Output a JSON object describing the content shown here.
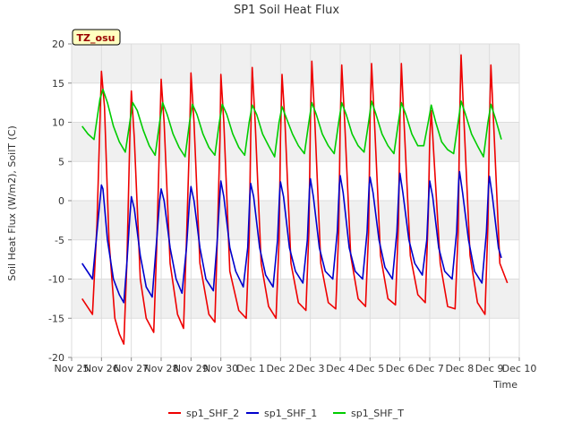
{
  "chart_data": {
    "type": "line",
    "title": "SP1 Soil Heat Flux",
    "xlabel": "Time",
    "ylabel": "Soil Heat Flux (W/m2), SoilT (C)",
    "badge": "TZ_osu",
    "xlim": [
      0,
      15
    ],
    "ylim": [
      -20,
      20
    ],
    "grid": true,
    "legend_position": "bottom-center",
    "x_tick_values": [
      0,
      1,
      2,
      3,
      4,
      5,
      6,
      7,
      8,
      9,
      10,
      11,
      12,
      13,
      14,
      15
    ],
    "x_tick_labels": [
      "Nov 25",
      "Nov 26",
      "Nov 27",
      "Nov 28",
      "Nov 29",
      "Nov 30",
      "Dec 1",
      "Dec 2",
      "Dec 3",
      "Dec 4",
      "Dec 5",
      "Dec 6",
      "Dec 7",
      "Dec 8",
      "Dec 9",
      "Dec 10"
    ],
    "y_tick_values": [
      -20,
      -15,
      -10,
      -5,
      0,
      5,
      10,
      15,
      20
    ],
    "y_tick_labels": [
      "-20",
      "-15",
      "-10",
      "-5",
      "0",
      "5",
      "10",
      "15",
      "20"
    ],
    "series": [
      {
        "name": "sp1_SHF_2",
        "color": "#ee0000",
        "x": [
          0.35,
          0.7,
          0.85,
          1.0,
          1.1,
          1.25,
          1.45,
          1.6,
          1.75,
          1.85,
          1.95,
          2.0,
          2.1,
          2.3,
          2.5,
          2.75,
          2.85,
          2.95,
          3.0,
          3.1,
          3.3,
          3.55,
          3.75,
          3.85,
          3.95,
          4.0,
          4.1,
          4.3,
          4.6,
          4.8,
          4.88,
          4.97,
          5.0,
          5.1,
          5.3,
          5.6,
          5.85,
          5.95,
          6.0,
          6.05,
          6.15,
          6.35,
          6.6,
          6.85,
          6.95,
          7.0,
          7.05,
          7.15,
          7.35,
          7.6,
          7.85,
          7.95,
          8.0,
          8.05,
          8.15,
          8.35,
          8.6,
          8.85,
          8.95,
          9.0,
          9.05,
          9.15,
          9.35,
          9.6,
          9.85,
          9.95,
          10.0,
          10.05,
          10.15,
          10.35,
          10.6,
          10.85,
          10.95,
          11.0,
          11.05,
          11.15,
          11.35,
          11.6,
          11.85,
          11.95,
          12.0,
          12.05,
          12.15,
          12.35,
          12.6,
          12.85,
          12.95,
          13.0,
          13.05,
          13.15,
          13.35,
          13.6,
          13.85,
          13.95,
          14.0,
          14.05,
          14.15,
          14.35,
          14.6
        ],
        "y": [
          -12.5,
          -14.5,
          -3.0,
          16.5,
          12.0,
          -5.0,
          -15.0,
          -17.0,
          -18.3,
          -8.0,
          8.0,
          14.0,
          8.0,
          -10.0,
          -15.0,
          -16.8,
          -6.0,
          8.0,
          15.5,
          10.0,
          -8.0,
          -14.5,
          -16.3,
          -5.0,
          8.0,
          16.3,
          10.0,
          -8.0,
          -14.5,
          -15.5,
          -5.0,
          8.0,
          16.1,
          10.0,
          -9.0,
          -14.0,
          -15.0,
          -5.0,
          8.0,
          17.0,
          10.0,
          -8.0,
          -13.5,
          -15.0,
          -5.0,
          8.0,
          16.1,
          10.0,
          -8.0,
          -13.0,
          -14.0,
          -4.0,
          10.0,
          17.8,
          10.0,
          -8.0,
          -13.0,
          -13.8,
          -4.0,
          10.0,
          17.3,
          10.0,
          -7.0,
          -12.5,
          -13.5,
          -4.0,
          10.0,
          17.5,
          10.0,
          -7.0,
          -12.5,
          -13.3,
          -3.0,
          10.0,
          17.5,
          9.0,
          -7.0,
          -12.0,
          -13.0,
          -2.0,
          8.0,
          11.5,
          5.0,
          -8.0,
          -13.5,
          -13.8,
          -4.0,
          10.0,
          18.6,
          10.0,
          -7.0,
          -13.0,
          -14.5,
          -3.0,
          10.0,
          17.3,
          9.0,
          -8.0,
          -10.5
        ]
      },
      {
        "name": "sp1_SHF_1",
        "color": "#0000cc",
        "x": [
          0.35,
          0.7,
          0.85,
          1.0,
          1.05,
          1.2,
          1.4,
          1.6,
          1.75,
          1.85,
          1.95,
          2.0,
          2.1,
          2.3,
          2.5,
          2.7,
          2.85,
          2.95,
          3.0,
          3.1,
          3.3,
          3.5,
          3.7,
          3.85,
          3.95,
          4.0,
          4.1,
          4.3,
          4.5,
          4.75,
          4.88,
          4.97,
          5.0,
          5.1,
          5.3,
          5.5,
          5.75,
          5.9,
          5.97,
          6.0,
          6.1,
          6.3,
          6.5,
          6.75,
          6.9,
          6.97,
          7.0,
          7.1,
          7.3,
          7.5,
          7.75,
          7.9,
          7.97,
          8.0,
          8.1,
          8.3,
          8.5,
          8.75,
          8.9,
          8.97,
          9.0,
          9.1,
          9.3,
          9.5,
          9.75,
          9.9,
          9.97,
          10.0,
          10.1,
          10.3,
          10.5,
          10.75,
          10.9,
          10.97,
          11.0,
          11.1,
          11.3,
          11.5,
          11.75,
          11.9,
          11.97,
          12.0,
          12.1,
          12.3,
          12.5,
          12.75,
          12.9,
          12.97,
          13.0,
          13.1,
          13.3,
          13.5,
          13.75,
          13.9,
          13.97,
          14.0,
          14.1,
          14.3,
          14.4
        ],
        "y": [
          -8.0,
          -10.0,
          -4.0,
          2.0,
          1.5,
          -5.0,
          -10.0,
          -12.0,
          -13.0,
          -8.0,
          -2.0,
          0.5,
          -1.0,
          -7.0,
          -11.0,
          -12.3,
          -5.0,
          0.0,
          1.5,
          0.0,
          -6.0,
          -10.0,
          -11.8,
          -6.0,
          0.0,
          1.8,
          0.0,
          -6.0,
          -10.0,
          -11.5,
          -5.0,
          1.0,
          2.5,
          0.5,
          -6.0,
          -9.0,
          -11.0,
          -6.0,
          0.5,
          2.2,
          0.5,
          -6.0,
          -9.5,
          -11.0,
          -5.0,
          1.0,
          2.4,
          0.5,
          -6.0,
          -9.0,
          -10.5,
          -5.0,
          1.5,
          2.8,
          0.5,
          -6.0,
          -9.0,
          -10.0,
          -4.0,
          2.0,
          3.2,
          1.0,
          -6.0,
          -9.0,
          -10.0,
          -4.0,
          2.0,
          3.0,
          1.0,
          -5.0,
          -8.5,
          -10.0,
          -4.0,
          2.0,
          3.5,
          1.0,
          -5.0,
          -8.0,
          -9.5,
          -5.0,
          1.0,
          2.5,
          0.5,
          -6.0,
          -9.0,
          -10.0,
          -4.0,
          2.5,
          3.7,
          1.0,
          -5.0,
          -9.0,
          -10.5,
          -4.0,
          2.0,
          3.1,
          0.5,
          -6.0,
          -7.3
        ]
      },
      {
        "name": "sp1_SHF_T",
        "color": "#00cc00",
        "x": [
          0.35,
          0.55,
          0.75,
          0.95,
          1.05,
          1.2,
          1.4,
          1.6,
          1.8,
          1.95,
          2.05,
          2.2,
          2.4,
          2.6,
          2.8,
          2.95,
          3.05,
          3.2,
          3.4,
          3.6,
          3.8,
          3.95,
          4.05,
          4.2,
          4.4,
          4.6,
          4.8,
          4.95,
          5.05,
          5.2,
          5.4,
          5.6,
          5.8,
          5.95,
          6.05,
          6.2,
          6.4,
          6.6,
          6.8,
          6.95,
          7.05,
          7.2,
          7.4,
          7.6,
          7.8,
          7.95,
          8.05,
          8.2,
          8.4,
          8.6,
          8.8,
          8.95,
          9.05,
          9.2,
          9.4,
          9.6,
          9.8,
          9.95,
          10.05,
          10.2,
          10.4,
          10.6,
          10.8,
          10.95,
          11.05,
          11.2,
          11.4,
          11.6,
          11.8,
          11.95,
          12.05,
          12.2,
          12.4,
          12.6,
          12.8,
          12.95,
          13.05,
          13.2,
          13.4,
          13.6,
          13.8,
          13.95,
          14.05,
          14.2,
          14.4
        ],
        "y": [
          9.5,
          8.5,
          7.8,
          13.0,
          14.2,
          12.5,
          9.5,
          7.5,
          6.2,
          10.0,
          12.5,
          11.5,
          9.0,
          7.0,
          5.8,
          10.0,
          12.5,
          11.0,
          8.5,
          6.8,
          5.6,
          10.0,
          12.3,
          11.0,
          8.5,
          6.8,
          5.8,
          10.0,
          12.3,
          11.0,
          8.5,
          6.8,
          5.8,
          10.0,
          12.2,
          11.0,
          8.5,
          7.0,
          5.6,
          10.0,
          12.0,
          10.5,
          8.5,
          7.0,
          6.0,
          10.0,
          12.5,
          11.0,
          8.5,
          7.0,
          6.0,
          10.0,
          12.5,
          11.0,
          8.5,
          7.0,
          6.2,
          10.0,
          12.7,
          11.0,
          8.5,
          7.0,
          6.0,
          10.0,
          12.5,
          11.0,
          8.5,
          7.0,
          7.0,
          10.0,
          12.2,
          10.0,
          7.5,
          6.5,
          6.0,
          10.0,
          12.7,
          11.0,
          8.5,
          7.0,
          5.6,
          10.0,
          12.3,
          10.5,
          7.8
        ]
      }
    ]
  }
}
